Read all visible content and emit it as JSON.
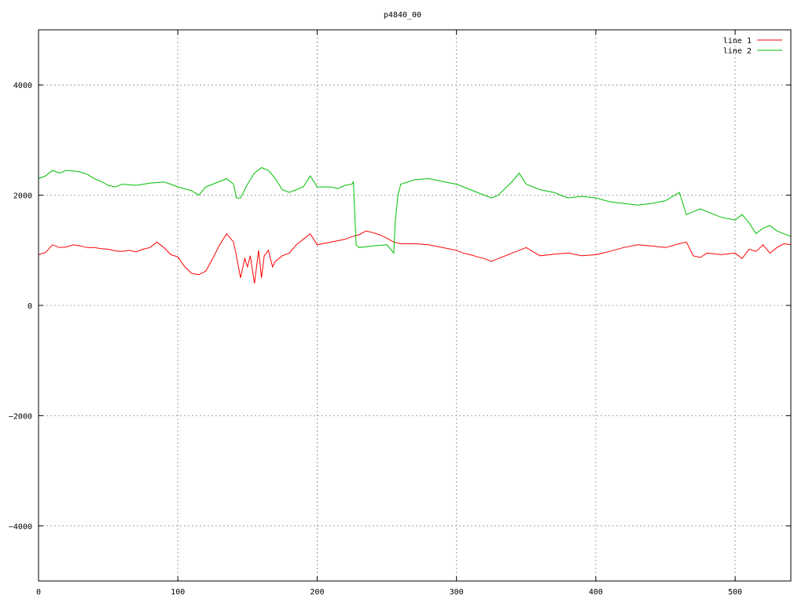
{
  "chart_data": {
    "type": "line",
    "title": "p4840_00",
    "xlabel": "",
    "ylabel": "",
    "xlim": [
      0,
      540
    ],
    "ylim": [
      -5000,
      5000
    ],
    "x_ticks": [
      0,
      100,
      200,
      300,
      400,
      500
    ],
    "y_ticks": [
      -4000,
      -2000,
      0,
      2000,
      4000
    ],
    "grid": true,
    "legend_position": "top-right",
    "series": [
      {
        "name": "line 1",
        "color": "#ff0000",
        "x": [
          0,
          5,
          10,
          15,
          20,
          25,
          30,
          35,
          40,
          45,
          50,
          55,
          60,
          65,
          70,
          75,
          80,
          85,
          90,
          95,
          100,
          105,
          110,
          115,
          120,
          125,
          130,
          135,
          140,
          142,
          145,
          148,
          150,
          152,
          155,
          158,
          160,
          162,
          165,
          168,
          170,
          175,
          180,
          185,
          190,
          195,
          200,
          210,
          220,
          225,
          230,
          235,
          240,
          245,
          250,
          255,
          260,
          270,
          280,
          290,
          300,
          305,
          310,
          315,
          320,
          325,
          330,
          335,
          340,
          345,
          350,
          360,
          370,
          380,
          390,
          400,
          410,
          420,
          430,
          440,
          450,
          460,
          465,
          470,
          475,
          480,
          490,
          500,
          505,
          510,
          515,
          520,
          525,
          530,
          535,
          540
        ],
        "y": [
          920,
          960,
          1100,
          1050,
          1060,
          1100,
          1080,
          1050,
          1050,
          1030,
          1020,
          990,
          980,
          1000,
          970,
          1020,
          1050,
          1150,
          1050,
          920,
          880,
          700,
          580,
          560,
          620,
          850,
          1100,
          1300,
          1150,
          900,
          500,
          850,
          700,
          900,
          400,
          1000,
          500,
          900,
          1000,
          700,
          800,
          900,
          950,
          1100,
          1200,
          1300,
          1100,
          1150,
          1200,
          1250,
          1280,
          1350,
          1320,
          1280,
          1220,
          1150,
          1120,
          1120,
          1100,
          1050,
          1000,
          950,
          920,
          880,
          850,
          800,
          850,
          900,
          950,
          1000,
          1050,
          900,
          930,
          950,
          900,
          920,
          980,
          1050,
          1100,
          1080,
          1050,
          1120,
          1150,
          900,
          870,
          950,
          920,
          950,
          850,
          1020,
          980,
          1100,
          950,
          1050,
          1120,
          1100
        ]
      },
      {
        "name": "line 2",
        "color": "#00c000",
        "x": [
          0,
          5,
          10,
          15,
          20,
          25,
          30,
          35,
          40,
          45,
          50,
          55,
          60,
          70,
          80,
          90,
          95,
          100,
          110,
          115,
          120,
          130,
          135,
          140,
          142,
          145,
          150,
          155,
          160,
          165,
          170,
          175,
          180,
          185,
          190,
          195,
          200,
          205,
          210,
          215,
          220,
          225,
          226,
          228,
          230,
          240,
          250,
          255,
          256,
          258,
          260,
          270,
          280,
          290,
          300,
          310,
          320,
          325,
          330,
          340,
          345,
          350,
          360,
          370,
          380,
          390,
          400,
          410,
          420,
          430,
          440,
          450,
          460,
          465,
          470,
          475,
          480,
          490,
          500,
          505,
          510,
          515,
          520,
          525,
          530,
          535,
          540
        ],
        "y": [
          2300,
          2350,
          2450,
          2400,
          2450,
          2440,
          2420,
          2380,
          2300,
          2250,
          2180,
          2150,
          2200,
          2180,
          2220,
          2240,
          2200,
          2150,
          2080,
          2000,
          2150,
          2250,
          2300,
          2200,
          1950,
          1950,
          2200,
          2400,
          2500,
          2450,
          2300,
          2100,
          2050,
          2100,
          2150,
          2350,
          2150,
          2150,
          2150,
          2120,
          2180,
          2200,
          2250,
          1100,
          1050,
          1080,
          1100,
          950,
          1500,
          2000,
          2200,
          2280,
          2300,
          2250,
          2200,
          2100,
          2000,
          1950,
          2000,
          2250,
          2400,
          2200,
          2100,
          2050,
          1950,
          1980,
          1950,
          1880,
          1850,
          1820,
          1850,
          1900,
          2050,
          1650,
          1700,
          1750,
          1700,
          1600,
          1550,
          1650,
          1500,
          1300,
          1400,
          1450,
          1350,
          1300,
          1250
        ]
      }
    ]
  }
}
